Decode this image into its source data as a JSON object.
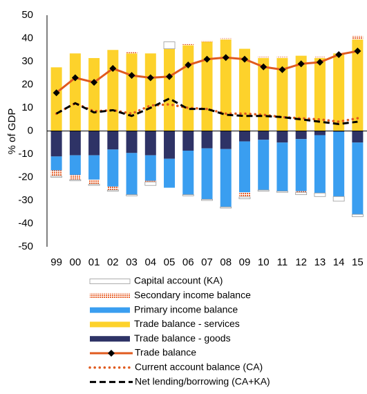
{
  "chart_data": {
    "type": "bar",
    "y_label": "% of GDP",
    "categories": [
      "99",
      "00",
      "01",
      "02",
      "03",
      "04",
      "05",
      "06",
      "07",
      "08",
      "09",
      "10",
      "11",
      "12",
      "13",
      "14",
      "15"
    ],
    "ylim": [
      -50,
      50
    ],
    "yticks": [
      -50,
      -40,
      -30,
      -20,
      -10,
      0,
      10,
      20,
      30,
      40,
      50
    ],
    "series": [
      {
        "name": "Capital account (KA)",
        "type": "bar",
        "style": "outline",
        "color": "#ffffff",
        "values": [
          -0.5,
          -0.5,
          -0.5,
          -0.5,
          -0.5,
          -1.5,
          3,
          -0.5,
          -0.5,
          -0.5,
          -0.8,
          -0.5,
          -0.5,
          -1,
          -1.5,
          -2,
          -1
        ]
      },
      {
        "name": "Secondary income balance",
        "type": "bar",
        "style": "hatched",
        "color": "#e8622c",
        "values": [
          -2.5,
          -2,
          -2,
          -1.5,
          0.5,
          -0.5,
          0,
          0.5,
          0.5,
          0.5,
          -2,
          0.5,
          0.5,
          -0.5,
          0.5,
          0,
          1.5
        ]
      },
      {
        "name": "Primary income balance",
        "type": "bar",
        "style": "solid",
        "color": "#3a9ef0",
        "values": [
          -6,
          -8.5,
          -10.5,
          -16,
          -18,
          -11,
          -12.5,
          -19,
          -22,
          -25,
          -22,
          -21.7,
          -21,
          -22.5,
          -25,
          -28,
          -31
        ]
      },
      {
        "name": "Trade balance - services",
        "type": "bar",
        "style": "solid",
        "color": "#fdd22b",
        "values": [
          27.5,
          33.5,
          31.5,
          35,
          33.5,
          33.5,
          35.5,
          37,
          38.5,
          39.5,
          35.5,
          31.5,
          31.5,
          32.5,
          31.5,
          33.5,
          39.5
        ]
      },
      {
        "name": "Trade balance - goods",
        "type": "bar",
        "style": "solid",
        "color": "#2e3366",
        "values": [
          -11,
          -10.5,
          -10.5,
          -8,
          -9.5,
          -10.5,
          -12,
          -8.5,
          -7.5,
          -7.8,
          -4.5,
          -3.8,
          -5,
          -3.5,
          -1.8,
          -0.3,
          -5
        ]
      },
      {
        "name": "Trade balance",
        "type": "line",
        "style": "marker",
        "color": "#e05a1e",
        "values": [
          16.5,
          23,
          21,
          27,
          24,
          23,
          23.5,
          28.5,
          31,
          31.7,
          31,
          27.7,
          26.5,
          29,
          29.7,
          33,
          34.5
        ]
      },
      {
        "name": "Current account balance (CA)",
        "type": "line",
        "style": "dotted",
        "color": "#e05a1e",
        "values": [
          7.5,
          12,
          8.5,
          9,
          7.5,
          11,
          11.5,
          10,
          9.5,
          7.5,
          7.5,
          7,
          6,
          5.5,
          5,
          4,
          5.5
        ]
      },
      {
        "name": "Net lending/borrowing (CA+KA)",
        "type": "line",
        "style": "dashed",
        "color": "#000000",
        "values": [
          7.5,
          12,
          8,
          9,
          6.5,
          10,
          14,
          9.5,
          9.5,
          7,
          6.5,
          6.5,
          6,
          5,
          4,
          3,
          4
        ]
      }
    ]
  }
}
